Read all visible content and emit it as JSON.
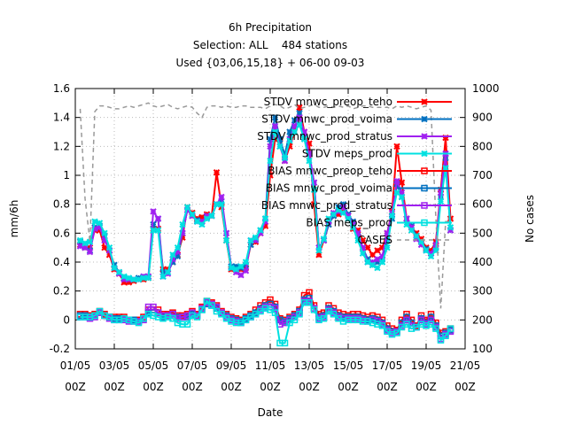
{
  "chart_data": {
    "type": "line",
    "title": [
      "6h Precipitation",
      "Selection: ALL    484 stations",
      "Used {03,06,15,18} + 06-00 09-03"
    ],
    "xlabel": "Date",
    "ylabel": "mm/6h",
    "y2label": "No cases",
    "x_ticks": [
      "01/05",
      "03/05",
      "05/05",
      "07/05",
      "09/05",
      "11/05",
      "13/05",
      "15/05",
      "17/05",
      "19/05",
      "21/05"
    ],
    "x_tick_hour": "00Z",
    "xlim": [
      0,
      80
    ],
    "ylim": [
      -0.2,
      1.6
    ],
    "y_ticks": [
      "-0.2",
      "0",
      "0.2",
      "0.4",
      "0.6",
      "0.8",
      "1",
      "1.2",
      "1.4",
      "1.6"
    ],
    "y2lim": [
      100,
      1000
    ],
    "y2_ticks": [
      "100",
      "200",
      "300",
      "400",
      "500",
      "600",
      "700",
      "800",
      "900",
      "1000"
    ],
    "legend_position": "top-right",
    "x": [
      1,
      2,
      3,
      4,
      5,
      6,
      7,
      8,
      9,
      10,
      11,
      12,
      13,
      14,
      15,
      16,
      17,
      18,
      19,
      20,
      21,
      22,
      23,
      24,
      25,
      26,
      27,
      28,
      29,
      30,
      31,
      32,
      33,
      34,
      35,
      36,
      37,
      38,
      39,
      40,
      41,
      42,
      43,
      44,
      45,
      46,
      47,
      48,
      49,
      50,
      51,
      52,
      53,
      54,
      55,
      56,
      57,
      58,
      59,
      60,
      61,
      62,
      63,
      64,
      65,
      66,
      67,
      68,
      69,
      70,
      71,
      72,
      73,
      74,
      75,
      76,
      77
    ],
    "series": [
      {
        "name": "STDV mnwc_preop_teho",
        "color": "#ff0000",
        "marker": "x",
        "axis": "left",
        "values": [
          0.52,
          0.5,
          0.5,
          0.62,
          0.62,
          0.5,
          0.45,
          0.35,
          0.32,
          0.26,
          0.26,
          0.27,
          0.28,
          0.28,
          0.29,
          0.63,
          0.63,
          0.35,
          0.35,
          0.4,
          0.45,
          0.57,
          0.78,
          0.74,
          0.7,
          0.71,
          0.73,
          0.72,
          1.02,
          0.78,
          0.55,
          0.35,
          0.35,
          0.35,
          0.36,
          0.52,
          0.54,
          0.6,
          0.65,
          1.0,
          1.25,
          1.23,
          1.1,
          1.2,
          1.3,
          1.47,
          1.3,
          1.22,
          0.8,
          0.45,
          0.55,
          0.66,
          0.72,
          0.73,
          0.75,
          0.72,
          0.63,
          0.62,
          0.55,
          0.5,
          0.45,
          0.48,
          0.5,
          0.6,
          0.75,
          1.2,
          0.95,
          0.7,
          0.64,
          0.6,
          0.56,
          0.5,
          0.48,
          0.54,
          0.9,
          1.26,
          0.7
        ]
      },
      {
        "name": "STDV mnwc_prod_voima",
        "color": "#0070c0",
        "marker": "x",
        "axis": "left",
        "values": [
          0.54,
          0.5,
          0.48,
          0.64,
          0.65,
          0.58,
          0.48,
          0.38,
          0.33,
          0.29,
          0.28,
          0.28,
          0.29,
          0.3,
          0.3,
          0.66,
          0.7,
          0.33,
          0.33,
          0.4,
          0.44,
          0.6,
          0.76,
          0.72,
          0.69,
          0.68,
          0.71,
          0.72,
          0.8,
          0.82,
          0.6,
          0.37,
          0.37,
          0.36,
          0.38,
          0.52,
          0.56,
          0.62,
          0.7,
          1.25,
          1.4,
          1.25,
          1.14,
          1.3,
          1.38,
          1.43,
          1.26,
          1.15,
          0.95,
          0.5,
          0.55,
          0.66,
          0.72,
          0.78,
          0.8,
          0.73,
          0.68,
          0.58,
          0.5,
          0.42,
          0.38,
          0.4,
          0.42,
          0.55,
          0.7,
          0.94,
          0.85,
          0.7,
          0.65,
          0.58,
          0.54,
          0.49,
          0.46,
          0.5,
          0.85,
          1.12,
          0.62
        ]
      },
      {
        "name": "STDV mnwc_prod_stratus",
        "color": "#a020f0",
        "marker": "x",
        "axis": "left",
        "values": [
          0.51,
          0.5,
          0.47,
          0.63,
          0.64,
          0.55,
          0.48,
          0.36,
          0.32,
          0.28,
          0.28,
          0.28,
          0.28,
          0.3,
          0.3,
          0.75,
          0.7,
          0.3,
          0.32,
          0.42,
          0.47,
          0.6,
          0.76,
          0.72,
          0.68,
          0.68,
          0.72,
          0.72,
          0.8,
          0.85,
          0.6,
          0.36,
          0.33,
          0.31,
          0.34,
          0.55,
          0.55,
          0.6,
          0.68,
          1.2,
          1.34,
          1.2,
          1.1,
          1.25,
          1.34,
          1.4,
          1.3,
          1.15,
          0.95,
          0.5,
          0.55,
          0.68,
          0.74,
          0.75,
          0.78,
          0.72,
          0.66,
          0.6,
          0.5,
          0.4,
          0.4,
          0.42,
          0.44,
          0.6,
          0.74,
          0.96,
          0.88,
          0.7,
          0.64,
          0.56,
          0.52,
          0.48,
          0.46,
          0.52,
          0.88,
          1.15,
          0.62
        ]
      },
      {
        "name": "STDV meps_prod",
        "color": "#00e0e0",
        "marker": "x",
        "axis": "left",
        "values": [
          0.55,
          0.53,
          0.54,
          0.68,
          0.67,
          0.6,
          0.5,
          0.36,
          0.33,
          0.3,
          0.29,
          0.28,
          0.28,
          0.29,
          0.29,
          0.62,
          0.62,
          0.3,
          0.33,
          0.45,
          0.5,
          0.66,
          0.78,
          0.73,
          0.68,
          0.66,
          0.7,
          0.72,
          0.8,
          0.8,
          0.55,
          0.36,
          0.35,
          0.37,
          0.4,
          0.55,
          0.57,
          0.62,
          0.7,
          1.1,
          1.3,
          1.2,
          1.12,
          1.24,
          1.3,
          1.35,
          1.25,
          1.1,
          0.9,
          0.48,
          0.56,
          0.7,
          0.73,
          0.76,
          0.74,
          0.7,
          0.64,
          0.55,
          0.46,
          0.4,
          0.38,
          0.36,
          0.4,
          0.5,
          0.72,
          0.88,
          0.85,
          0.66,
          0.62,
          0.58,
          0.54,
          0.48,
          0.44,
          0.48,
          0.82,
          1.05,
          0.64
        ]
      },
      {
        "name": "BIAS mnwc_preop_teho",
        "color": "#ff0000",
        "marker": "square",
        "axis": "left",
        "values": [
          0.04,
          0.04,
          0.03,
          0.04,
          0.06,
          0.04,
          0.02,
          0.02,
          0.02,
          0.02,
          0.0,
          0.0,
          0.0,
          0.02,
          0.07,
          0.07,
          0.07,
          0.04,
          0.04,
          0.05,
          0.03,
          0.03,
          0.04,
          0.06,
          0.04,
          0.09,
          0.13,
          0.12,
          0.1,
          0.06,
          0.04,
          0.02,
          0.01,
          0.0,
          0.02,
          0.04,
          0.07,
          0.1,
          0.12,
          0.14,
          0.11,
          0.01,
          0.0,
          0.02,
          0.04,
          0.07,
          0.17,
          0.19,
          0.1,
          0.04,
          0.05,
          0.1,
          0.08,
          0.05,
          0.04,
          0.03,
          0.04,
          0.04,
          0.03,
          0.02,
          0.03,
          0.02,
          0.0,
          -0.04,
          -0.06,
          -0.07,
          0.0,
          0.04,
          0.0,
          -0.04,
          0.03,
          0.0,
          0.04,
          -0.02,
          -0.09,
          -0.08,
          -0.06
        ]
      },
      {
        "name": "BIAS mnwc_prod_voima",
        "color": "#0070c0",
        "marker": "square",
        "axis": "left",
        "values": [
          0.03,
          0.03,
          0.02,
          0.03,
          0.05,
          0.03,
          0.02,
          0.01,
          0.01,
          0.01,
          0.0,
          0.0,
          -0.01,
          0.01,
          0.05,
          0.05,
          0.05,
          0.02,
          0.03,
          0.04,
          0.02,
          0.02,
          0.02,
          0.04,
          0.03,
          0.07,
          0.11,
          0.1,
          0.08,
          0.05,
          0.03,
          0.01,
          0.0,
          -0.01,
          0.01,
          0.03,
          0.05,
          0.08,
          0.1,
          0.11,
          0.09,
          0.0,
          -0.01,
          0.01,
          0.03,
          0.06,
          0.14,
          0.15,
          0.08,
          0.02,
          0.03,
          0.08,
          0.06,
          0.03,
          0.02,
          0.02,
          0.02,
          0.02,
          0.01,
          0.0,
          0.01,
          0.0,
          -0.02,
          -0.06,
          -0.08,
          -0.08,
          -0.02,
          0.02,
          -0.02,
          -0.05,
          0.01,
          -0.02,
          0.02,
          -0.04,
          -0.11,
          -0.09,
          -0.07
        ]
      },
      {
        "name": "BIAS mnwc_prod_stratus",
        "color": "#a020f0",
        "marker": "square",
        "axis": "left",
        "values": [
          0.02,
          0.02,
          0.01,
          0.02,
          0.05,
          0.03,
          0.01,
          0.0,
          0.0,
          0.0,
          -0.01,
          -0.01,
          -0.01,
          0.0,
          0.09,
          0.09,
          0.05,
          0.03,
          0.03,
          0.04,
          0.01,
          0.02,
          0.03,
          0.05,
          0.03,
          0.08,
          0.12,
          0.11,
          0.09,
          0.05,
          0.02,
          0.0,
          -0.01,
          -0.02,
          0.0,
          0.02,
          0.04,
          0.07,
          0.09,
          0.09,
          0.08,
          -0.03,
          -0.02,
          0.0,
          0.02,
          0.05,
          0.13,
          0.13,
          0.08,
          0.01,
          0.02,
          0.07,
          0.05,
          0.02,
          0.01,
          0.01,
          0.01,
          0.01,
          0.0,
          -0.01,
          0.0,
          -0.01,
          -0.03,
          -0.07,
          -0.09,
          -0.08,
          -0.04,
          0.0,
          -0.04,
          -0.05,
          0.0,
          -0.03,
          0.0,
          -0.05,
          -0.13,
          -0.1,
          -0.08
        ]
      },
      {
        "name": "BIAS meps_prod",
        "color": "#00e0e0",
        "marker": "square",
        "axis": "left",
        "values": [
          0.02,
          0.02,
          0.02,
          0.03,
          0.06,
          0.03,
          0.02,
          0.0,
          0.0,
          0.01,
          0.0,
          -0.01,
          -0.02,
          0.01,
          0.04,
          0.03,
          0.02,
          0.01,
          0.02,
          0.01,
          -0.02,
          -0.03,
          -0.03,
          0.03,
          0.02,
          0.07,
          0.13,
          0.1,
          0.06,
          0.04,
          0.01,
          -0.01,
          -0.02,
          -0.02,
          0.0,
          0.02,
          0.04,
          0.06,
          0.08,
          0.07,
          0.05,
          -0.16,
          -0.16,
          -0.02,
          0.0,
          0.04,
          0.12,
          0.12,
          0.07,
          0.0,
          0.01,
          0.06,
          0.04,
          0.01,
          -0.01,
          0.0,
          0.0,
          0.0,
          -0.01,
          -0.01,
          -0.02,
          -0.03,
          -0.04,
          -0.08,
          -0.1,
          -0.09,
          -0.05,
          -0.03,
          -0.06,
          -0.05,
          -0.03,
          -0.04,
          -0.03,
          -0.06,
          -0.14,
          -0.11,
          -0.06
        ]
      },
      {
        "name": "CASES",
        "color": "#999999",
        "dashed": true,
        "axis": "right",
        "values": [
          930,
          620,
          470,
          920,
          940,
          940,
          935,
          930,
          930,
          935,
          940,
          935,
          940,
          945,
          950,
          940,
          935,
          940,
          945,
          935,
          930,
          935,
          940,
          935,
          915,
          900,
          935,
          940,
          940,
          935,
          940,
          935,
          935,
          940,
          940,
          935,
          935,
          935,
          930,
          940,
          945,
          940,
          930,
          935,
          945,
          930,
          935,
          940,
          945,
          935,
          935,
          940,
          935,
          940,
          935,
          940,
          930,
          935,
          940,
          940,
          935,
          935,
          935,
          935,
          930,
          940,
          935,
          940,
          935,
          930,
          935,
          940,
          925,
          550,
          240,
          540,
          540
        ]
      }
    ]
  }
}
